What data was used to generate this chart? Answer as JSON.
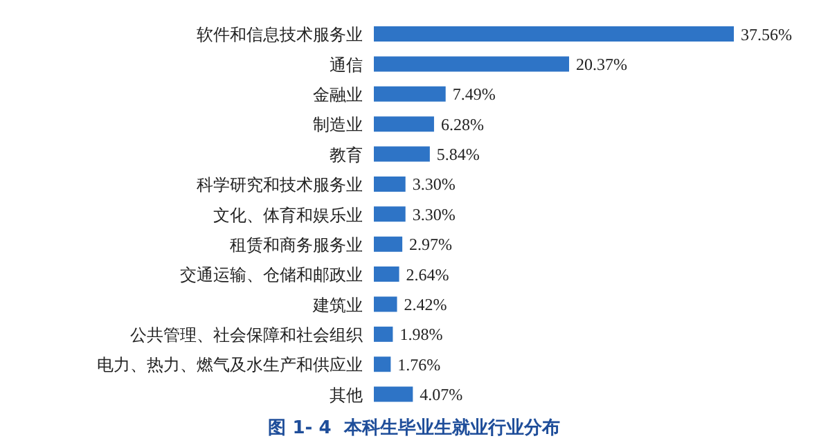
{
  "chart_data": {
    "type": "bar",
    "orientation": "horizontal",
    "title": "图 1- 4  本科生毕业生就业行业分布",
    "categories": [
      "软件和信息技术服务业",
      "通信",
      "金融业",
      "制造业",
      "教育",
      "科学研究和技术服务业",
      "文化、体育和娱乐业",
      "租赁和商务服务业",
      "交通运输、仓储和邮政业",
      "建筑业",
      "公共管理、社会保障和社会组织",
      "电力、热力、燃气及水生产和供应业",
      "其他"
    ],
    "values": [
      37.56,
      20.37,
      7.49,
      6.28,
      5.84,
      3.3,
      3.3,
      2.97,
      2.64,
      2.42,
      1.98,
      1.76,
      4.07
    ],
    "value_labels": [
      "37.56%",
      "20.37%",
      "7.49%",
      "6.28%",
      "5.84%",
      "3.30%",
      "3.30%",
      "2.97%",
      "2.64%",
      "2.42%",
      "1.98%",
      "1.76%",
      "4.07%"
    ],
    "color": "#2e74c6"
  }
}
